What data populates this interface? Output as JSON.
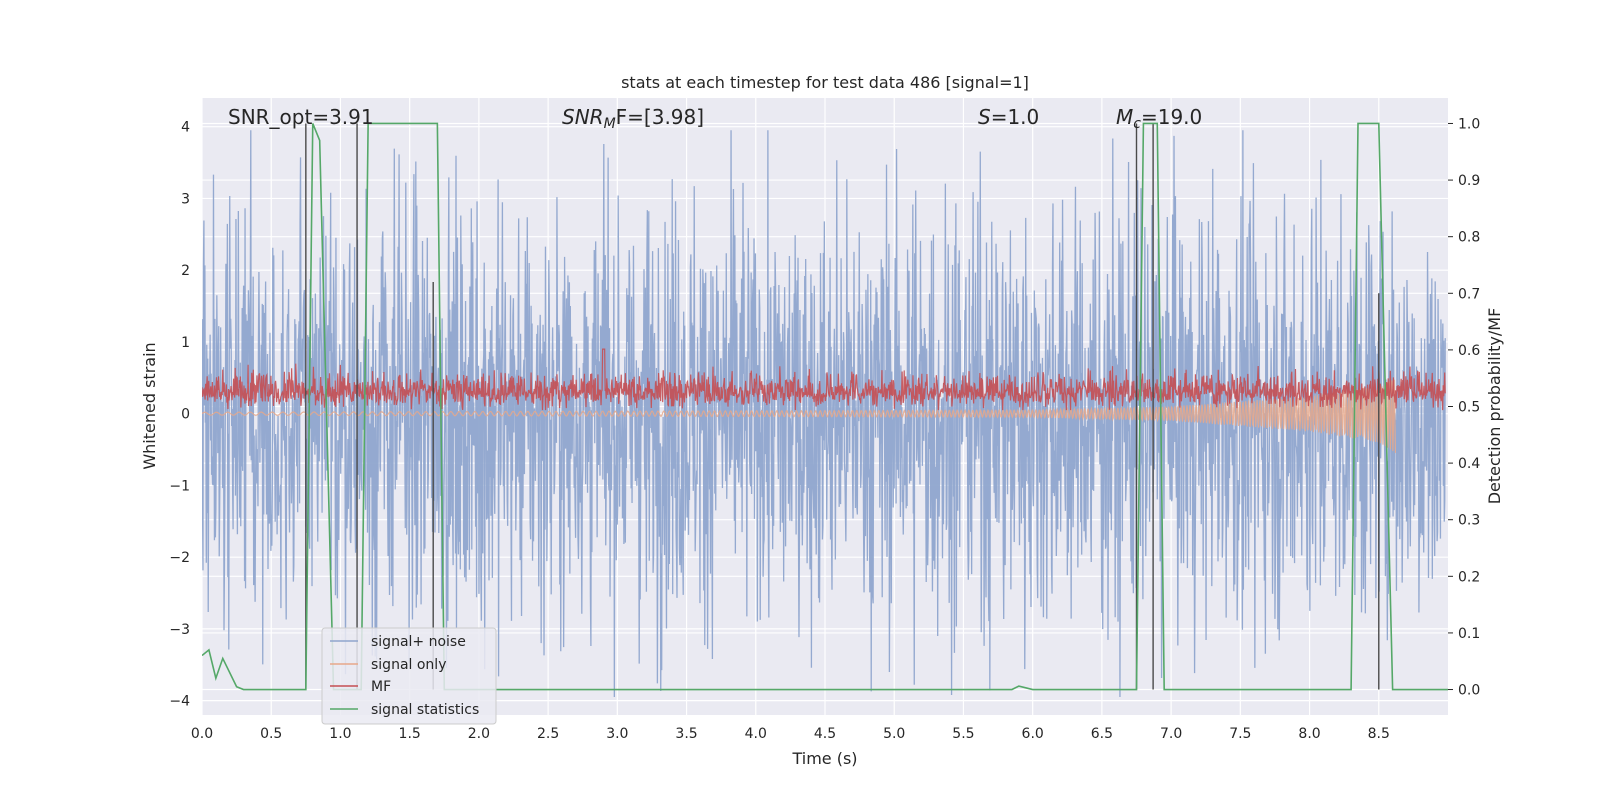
{
  "chart_data": {
    "type": "line",
    "title": "stats at each timestep for test data 486 [signal=1]",
    "xlabel": "Time (s)",
    "ylabel": "Whitened strain",
    "ylabel_right": "Detection probability/MF",
    "xlim": [
      0.0,
      9.0
    ],
    "ylim": [
      -4.2,
      4.4
    ],
    "ylim_right": [
      -0.045,
      1.045
    ],
    "x_ticks": [
      "0.0",
      "0.5",
      "1.0",
      "1.5",
      "2.0",
      "2.5",
      "3.0",
      "3.5",
      "4.0",
      "4.5",
      "5.0",
      "5.5",
      "6.0",
      "6.5",
      "7.0",
      "7.5",
      "8.0",
      "8.5"
    ],
    "y_ticks": [
      "−4",
      "−3",
      "−2",
      "−1",
      "0",
      "1",
      "2",
      "3",
      "4"
    ],
    "y_ticks_right": [
      "0.0",
      "0.1",
      "0.2",
      "0.3",
      "0.4",
      "0.5",
      "0.6",
      "0.7",
      "0.8",
      "0.9",
      "1.0"
    ],
    "grid": true,
    "legend_position": "lower-left",
    "annotations": [
      {
        "key": "snr_opt",
        "text": "SNR_opt=3.91"
      },
      {
        "key": "snr_mf",
        "sym": "SNR",
        "sub": "M",
        "rest": "F=[3.98]"
      },
      {
        "key": "s",
        "sym": "S",
        "rest": "=1.0"
      },
      {
        "key": "mc",
        "sym": "M",
        "sub": "c",
        "rest": "=19.0"
      }
    ],
    "series": [
      {
        "name": "signal+ noise",
        "color": "#8fa5cd",
        "axis": "left",
        "amplitude": "noise, about ±2.5 typical, peaks to ±4"
      },
      {
        "name": "signal only",
        "color": "#e8a88a",
        "axis": "left",
        "envelope": [
          [
            0.0,
            0.02
          ],
          [
            6.0,
            0.05
          ],
          [
            7.0,
            0.1
          ],
          [
            8.0,
            0.25
          ],
          [
            8.5,
            0.4
          ],
          [
            8.62,
            0.55
          ]
        ]
      },
      {
        "name": "MF",
        "color": "#c44e52",
        "axis": "left",
        "amplitude": "0.1 to 0.6 typical, peak near 1.0 at 2.9 s"
      },
      {
        "name": "signal statistics",
        "color": "#55a868",
        "axis": "right",
        "x": [
          0.0,
          0.05,
          0.1,
          0.15,
          0.25,
          0.3,
          0.75,
          0.8,
          0.85,
          0.95,
          1.0,
          1.15,
          1.2,
          1.7,
          1.75,
          1.85,
          1.9,
          5.85,
          5.9,
          5.95,
          6.0,
          6.75,
          6.8,
          6.9,
          6.95,
          8.3,
          8.35,
          8.5,
          8.6,
          8.75,
          9.0
        ],
        "y": [
          0.06,
          0.07,
          0.02,
          0.055,
          0.005,
          0.0,
          0.0,
          1.0,
          0.97,
          0.0,
          0.0,
          0.0,
          1.0,
          1.0,
          0.0,
          0.0,
          0.0,
          0.0,
          0.006,
          0.003,
          0.0,
          0.0,
          1.0,
          1.0,
          0.0,
          0.0,
          1.0,
          1.0,
          0.0,
          0.0,
          0.0
        ]
      },
      {
        "name": "trigger markers",
        "color": "#4a4a4a",
        "axis": "right",
        "legend": false,
        "events": [
          [
            0.75,
            0.0,
            1.0
          ],
          [
            1.12,
            0.0,
            1.0
          ],
          [
            1.67,
            0.0,
            0.72
          ],
          [
            6.75,
            0.0,
            1.0
          ],
          [
            6.87,
            0.0,
            1.0
          ],
          [
            8.5,
            0.0,
            0.7
          ]
        ]
      }
    ]
  }
}
